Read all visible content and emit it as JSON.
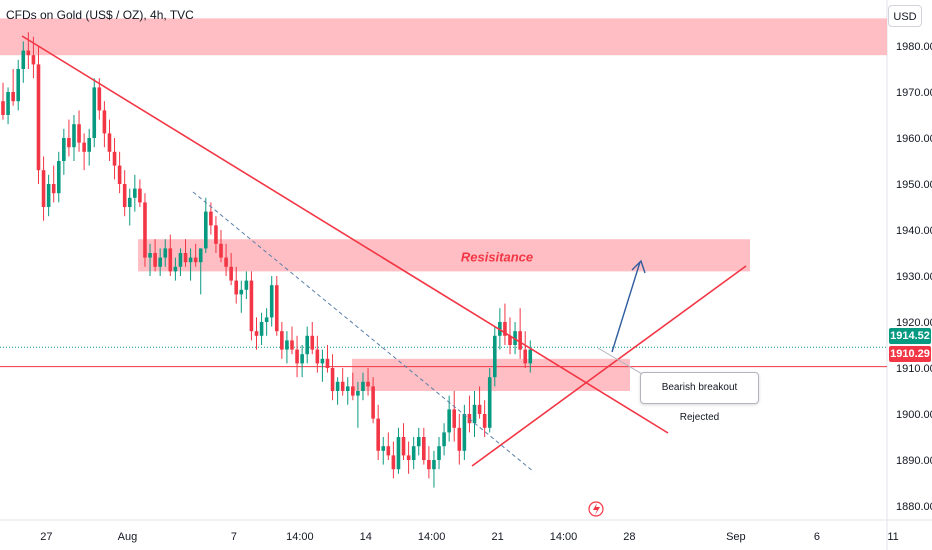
{
  "header": {
    "title": "CFDs on Gold (US$ / OZ), 4h, TVC",
    "currency": "USD"
  },
  "colors": {
    "bull": "#089981",
    "bear": "#f23645",
    "zone": "#ffb3b8",
    "trend": "#f23645",
    "dashed": "#5b7faa",
    "arrow": "#2f5c9e"
  },
  "chart_data": {
    "type": "candlestick",
    "ylim": [
      1875,
      1988
    ],
    "yticks": [
      1880,
      1890,
      1900,
      1910,
      1920,
      1930,
      1940,
      1950,
      1960,
      1970,
      1980
    ],
    "ytick_labels": [
      "1880.00",
      "1890.00",
      "1900.00",
      "1910.00",
      "1920.00",
      "1930.00",
      "1940.00",
      "1950.00",
      "1960.00",
      "1970.00",
      "1980.00"
    ],
    "xticks": [
      {
        "label": "27",
        "i": 5
      },
      {
        "label": "Aug",
        "i": 21
      },
      {
        "label": "7",
        "i": 42
      },
      {
        "label": "14:00",
        "i": 55
      },
      {
        "label": "14",
        "i": 68
      },
      {
        "label": "14:00",
        "i": 81
      },
      {
        "label": "21",
        "i": 94
      },
      {
        "label": "14:00",
        "i": 107
      },
      {
        "label": "28",
        "i": 120
      },
      {
        "label": "Sep",
        "i": 141
      },
      {
        "label": "6",
        "i": 157
      },
      {
        "label": "11",
        "i": 172
      }
    ],
    "current_price": "1914.52",
    "level_price": "1910.29",
    "level_value": 1910.29,
    "current_value": 1914.52,
    "candles": [
      [
        1968,
        1972,
        1964,
        1965
      ],
      [
        1965,
        1971,
        1963,
        1970
      ],
      [
        1970,
        1975,
        1967,
        1968
      ],
      [
        1968,
        1977,
        1966,
        1975
      ],
      [
        1975,
        1981,
        1972,
        1979
      ],
      [
        1979,
        1983,
        1975,
        1978
      ],
      [
        1978,
        1982,
        1973,
        1976
      ],
      [
        1976,
        1980,
        1950,
        1953
      ],
      [
        1953,
        1956,
        1942,
        1945
      ],
      [
        1945,
        1952,
        1943,
        1950
      ],
      [
        1950,
        1954,
        1946,
        1948
      ],
      [
        1948,
        1957,
        1946,
        1955
      ],
      [
        1955,
        1962,
        1952,
        1960
      ],
      [
        1960,
        1964,
        1956,
        1958
      ],
      [
        1958,
        1965,
        1955,
        1963
      ],
      [
        1963,
        1966,
        1957,
        1959
      ],
      [
        1959,
        1961,
        1953,
        1957
      ],
      [
        1957,
        1962,
        1954,
        1960
      ],
      [
        1960,
        1973,
        1958,
        1971
      ],
      [
        1971,
        1973,
        1964,
        1966
      ],
      [
        1966,
        1968,
        1958,
        1961
      ],
      [
        1961,
        1964,
        1955,
        1957
      ],
      [
        1957,
        1960,
        1951,
        1954
      ],
      [
        1954,
        1957,
        1948,
        1950
      ],
      [
        1950,
        1953,
        1943,
        1945
      ],
      [
        1945,
        1949,
        1941,
        1947
      ],
      [
        1947,
        1952,
        1944,
        1949
      ],
      [
        1949,
        1951,
        1945,
        1946
      ],
      [
        1946,
        1948,
        1932,
        1934
      ],
      [
        1934,
        1937,
        1930,
        1935
      ],
      [
        1935,
        1938,
        1931,
        1932
      ],
      [
        1932,
        1936,
        1930,
        1934
      ],
      [
        1934,
        1938,
        1932,
        1936
      ],
      [
        1936,
        1939,
        1930,
        1931
      ],
      [
        1931,
        1934,
        1929,
        1932
      ],
      [
        1932,
        1936,
        1930,
        1935
      ],
      [
        1935,
        1938,
        1932,
        1933
      ],
      [
        1933,
        1936,
        1929,
        1934
      ],
      [
        1934,
        1937,
        1932,
        1933
      ],
      [
        1933,
        1936,
        1926,
        1936
      ],
      [
        1936,
        1947,
        1935,
        1944
      ],
      [
        1944,
        1946,
        1939,
        1941
      ],
      [
        1941,
        1943,
        1935,
        1937
      ],
      [
        1937,
        1940,
        1933,
        1934
      ],
      [
        1934,
        1937,
        1930,
        1932
      ],
      [
        1932,
        1935,
        1928,
        1929
      ],
      [
        1929,
        1932,
        1924,
        1926
      ],
      [
        1926,
        1929,
        1922,
        1927
      ],
      [
        1927,
        1931,
        1925,
        1929
      ],
      [
        1929,
        1931,
        1916,
        1918
      ],
      [
        1918,
        1921,
        1914,
        1917
      ],
      [
        1917,
        1922,
        1915,
        1920
      ],
      [
        1920,
        1923,
        1917,
        1921
      ],
      [
        1921,
        1930,
        1919,
        1928
      ],
      [
        1928,
        1930,
        1917,
        1918
      ],
      [
        1918,
        1920,
        1912,
        1914
      ],
      [
        1914,
        1918,
        1911,
        1916
      ],
      [
        1916,
        1919,
        1913,
        1914
      ],
      [
        1914,
        1917,
        1908,
        1911
      ],
      [
        1911,
        1915,
        1908,
        1913
      ],
      [
        1913,
        1919,
        1911,
        1917
      ],
      [
        1917,
        1920,
        1913,
        1914
      ],
      [
        1914,
        1917,
        1909,
        1911
      ],
      [
        1911,
        1914,
        1907,
        1912
      ],
      [
        1912,
        1915,
        1909,
        1910
      ],
      [
        1910,
        1913,
        1903,
        1905
      ],
      [
        1905,
        1908,
        1902,
        1907
      ],
      [
        1907,
        1910,
        1904,
        1905
      ],
      [
        1905,
        1908,
        1902,
        1906
      ],
      [
        1906,
        1909,
        1903,
        1904
      ],
      [
        1904,
        1907,
        1897,
        1905
      ],
      [
        1905,
        1909,
        1903,
        1907
      ],
      [
        1907,
        1910,
        1904,
        1906
      ],
      [
        1906,
        1908,
        1898,
        1899
      ],
      [
        1899,
        1902,
        1890,
        1892
      ],
      [
        1892,
        1895,
        1889,
        1893
      ],
      [
        1893,
        1896,
        1890,
        1891
      ],
      [
        1891,
        1894,
        1886,
        1888
      ],
      [
        1888,
        1897,
        1887,
        1895
      ],
      [
        1895,
        1898,
        1890,
        1891
      ],
      [
        1891,
        1894,
        1887,
        1890
      ],
      [
        1890,
        1895,
        1888,
        1893
      ],
      [
        1893,
        1897,
        1891,
        1895
      ],
      [
        1895,
        1897,
        1889,
        1890
      ],
      [
        1890,
        1893,
        1886,
        1888
      ],
      [
        1888,
        1892,
        1884,
        1890
      ],
      [
        1890,
        1895,
        1888,
        1893
      ],
      [
        1893,
        1898,
        1891,
        1896
      ],
      [
        1896,
        1904,
        1894,
        1901
      ],
      [
        1901,
        1905,
        1894,
        1897
      ],
      [
        1897,
        1900,
        1889,
        1892
      ],
      [
        1892,
        1902,
        1890,
        1900
      ],
      [
        1900,
        1904,
        1896,
        1898
      ],
      [
        1898,
        1905,
        1895,
        1902
      ],
      [
        1902,
        1906,
        1899,
        1900
      ],
      [
        1900,
        1903,
        1895,
        1897
      ],
      [
        1897,
        1910,
        1896,
        1908
      ],
      [
        1908,
        1919,
        1906,
        1917
      ],
      [
        1917,
        1923,
        1914,
        1920
      ],
      [
        1920,
        1924,
        1915,
        1917
      ],
      [
        1917,
        1921,
        1913,
        1915
      ],
      [
        1915,
        1920,
        1913,
        1918
      ],
      [
        1918,
        1923,
        1912,
        1914
      ],
      [
        1914,
        1918,
        1910,
        1911
      ],
      [
        1911,
        1916,
        1909,
        1914
      ]
    ],
    "annotations": {
      "top_zone": [
        1978,
        1986
      ],
      "resistance_zone": [
        1931,
        1938
      ],
      "support_zone": [
        1905,
        1912
      ],
      "resistance_label": "Resisitance",
      "callout_text": "Bearish breakout Rejected"
    }
  }
}
